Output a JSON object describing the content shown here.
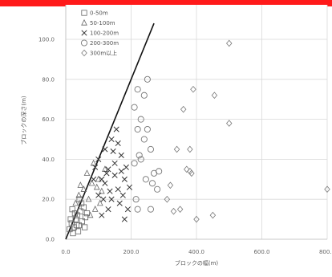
{
  "header_bar_color": "#ff1a1a",
  "chart_data": {
    "type": "scatter",
    "xlabel": "ブロックの幅(m)",
    "ylabel": "ブロックの深さ(m)",
    "xlim": [
      0,
      800
    ],
    "ylim": [
      0,
      100
    ],
    "x_ticks": [
      "0.0",
      "200.0",
      "400.0",
      "600.0",
      "800.0"
    ],
    "y_ticks": [
      "0.0",
      "20.0",
      "40.0",
      "60.0",
      "80.0",
      "100.0"
    ],
    "grid": true,
    "legend_position": "top-left",
    "reference_line": {
      "x": [
        0,
        270
      ],
      "y": [
        0,
        108
      ]
    },
    "series": [
      {
        "name": "0-50m",
        "marker": "square",
        "points": [
          [
            12,
            5
          ],
          [
            18,
            8
          ],
          [
            25,
            6
          ],
          [
            30,
            10
          ],
          [
            35,
            12
          ],
          [
            40,
            7
          ],
          [
            45,
            14
          ],
          [
            50,
            9
          ],
          [
            55,
            16
          ],
          [
            60,
            11
          ],
          [
            22,
            3
          ],
          [
            28,
            13
          ],
          [
            38,
            4
          ],
          [
            48,
            18
          ],
          [
            15,
            10
          ],
          [
            33,
            7
          ],
          [
            42,
            20
          ],
          [
            58,
            6
          ],
          [
            65,
            13
          ],
          [
            20,
            15
          ]
        ]
      },
      {
        "name": "50-100m",
        "marker": "triangle",
        "points": [
          [
            30,
            18
          ],
          [
            40,
            22
          ],
          [
            55,
            25
          ],
          [
            70,
            20
          ],
          [
            80,
            28
          ],
          [
            90,
            15
          ],
          [
            100,
            30
          ],
          [
            110,
            24
          ],
          [
            120,
            35
          ],
          [
            65,
            33
          ],
          [
            85,
            38
          ],
          [
            95,
            26
          ],
          [
            45,
            27
          ],
          [
            75,
            12
          ],
          [
            105,
            18
          ]
        ]
      },
      {
        "name": "100-200m",
        "marker": "x",
        "points": [
          [
            100,
            40
          ],
          [
            110,
            30
          ],
          [
            120,
            45
          ],
          [
            130,
            35
          ],
          [
            140,
            20
          ],
          [
            150,
            38
          ],
          [
            160,
            25
          ],
          [
            170,
            42
          ],
          [
            180,
            30
          ],
          [
            190,
            15
          ],
          [
            140,
            50
          ],
          [
            155,
            55
          ],
          [
            120,
            28
          ],
          [
            130,
            15
          ],
          [
            165,
            18
          ],
          [
            185,
            36
          ],
          [
            110,
            12
          ],
          [
            150,
            32
          ],
          [
            175,
            22
          ],
          [
            195,
            26
          ],
          [
            125,
            33
          ],
          [
            145,
            44
          ],
          [
            160,
            48
          ],
          [
            135,
            24
          ],
          [
            115,
            20
          ],
          [
            170,
            34
          ],
          [
            180,
            10
          ],
          [
            100,
            22
          ],
          [
            90,
            36
          ],
          [
            85,
            30
          ]
        ]
      },
      {
        "name": "200-300m",
        "marker": "circle",
        "points": [
          [
            210,
            66
          ],
          [
            220,
            75
          ],
          [
            230,
            60
          ],
          [
            240,
            50
          ],
          [
            250,
            80
          ],
          [
            230,
            40
          ],
          [
            245,
            30
          ],
          [
            260,
            45
          ],
          [
            270,
            33
          ],
          [
            280,
            25
          ],
          [
            260,
            15
          ],
          [
            220,
            15
          ],
          [
            240,
            72
          ],
          [
            250,
            55
          ],
          [
            210,
            38
          ],
          [
            220,
            55
          ],
          [
            265,
            28
          ],
          [
            225,
            42
          ],
          [
            215,
            20
          ],
          [
            285,
            34
          ]
        ]
      },
      {
        "name": "300m以上",
        "marker": "diamond",
        "points": [
          [
            310,
            20
          ],
          [
            320,
            27
          ],
          [
            330,
            14
          ],
          [
            350,
            15
          ],
          [
            370,
            35
          ],
          [
            380,
            45
          ],
          [
            385,
            33
          ],
          [
            390,
            75
          ],
          [
            360,
            65
          ],
          [
            400,
            10
          ],
          [
            450,
            12
          ],
          [
            455,
            72
          ],
          [
            500,
            98
          ],
          [
            500,
            58
          ],
          [
            800,
            25
          ],
          [
            340,
            45
          ],
          [
            380,
            34
          ]
        ]
      }
    ]
  }
}
